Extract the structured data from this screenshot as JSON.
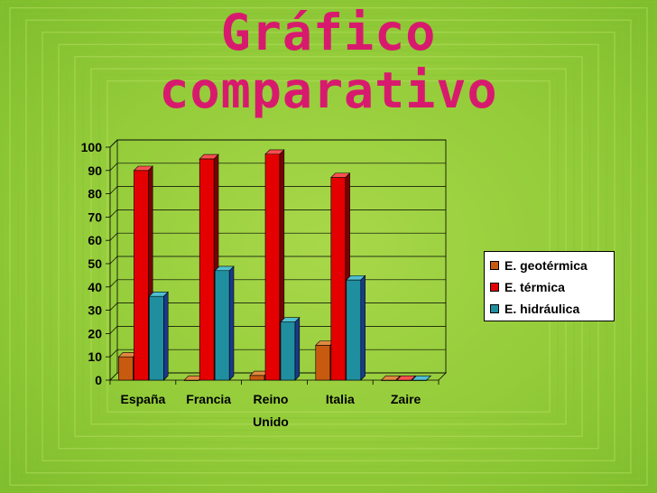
{
  "title_lines": [
    "Gráfico",
    "comparativo"
  ],
  "chart_data": {
    "type": "bar",
    "categories": [
      "España",
      "Francia",
      "Reino Unido",
      "Italia",
      "Zaire"
    ],
    "series": [
      {
        "name": "E. geotérmica",
        "values": [
          10,
          0,
          2,
          15,
          0
        ],
        "color": "#c85a10",
        "side": "#7a3608",
        "top": "#e08a40"
      },
      {
        "name": "E. térmica",
        "values": [
          90,
          95,
          97,
          87,
          0
        ],
        "color": "#e40000",
        "side": "#7a0000",
        "top": "#ff5050"
      },
      {
        "name": "E. hidráulica",
        "values": [
          36,
          47,
          25,
          43,
          0
        ],
        "color": "#1f8fa0",
        "side": "#1a3a8a",
        "top": "#50c0d0"
      }
    ],
    "yticks": [
      0,
      10,
      20,
      30,
      40,
      50,
      60,
      70,
      80,
      90,
      100
    ],
    "ylim": [
      0,
      100
    ],
    "xlabel": "",
    "ylabel": "",
    "legend_position": "right",
    "grid": true
  }
}
